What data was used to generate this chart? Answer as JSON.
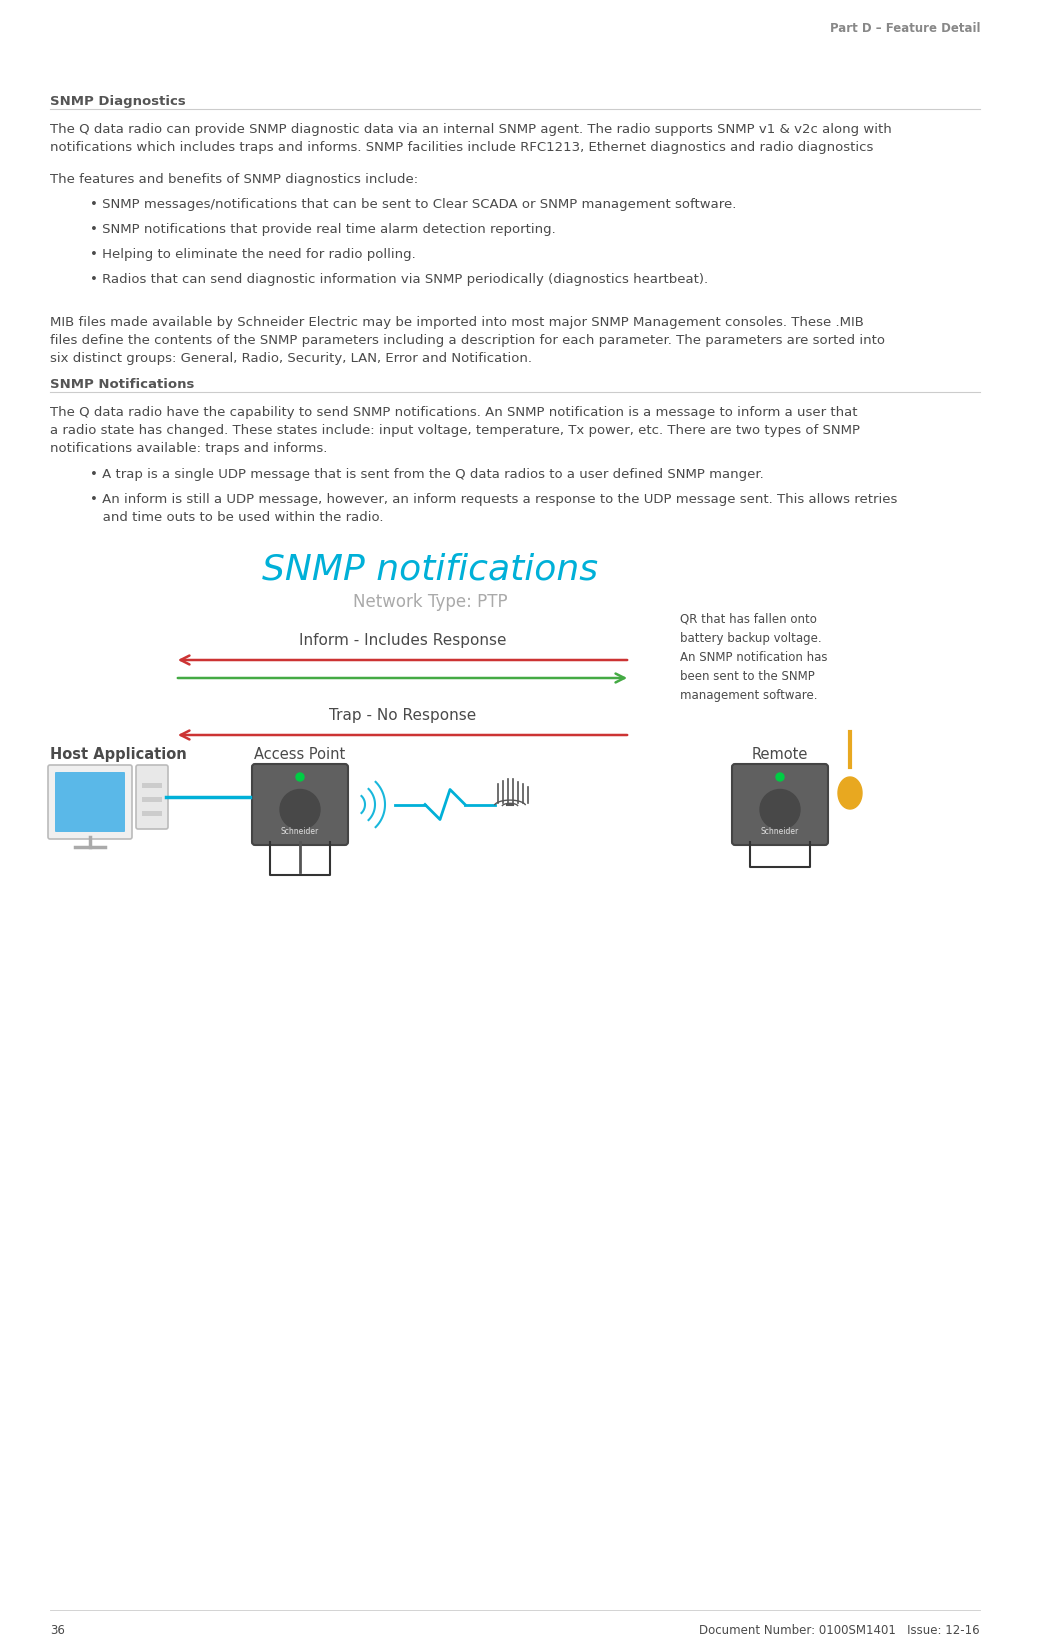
{
  "bg_color": "#ffffff",
  "text_color": "#4a4a4a",
  "header_color": "#888888",
  "section_title_color": "#555555",
  "snmp_title_color": "#00b0d8",
  "network_type_color": "#aaaaaa",
  "line_color": "#cccccc",
  "inform_arrow_color": "#cc3333",
  "response_arrow_color": "#44aa44",
  "trap_arrow_color": "#cc3333",
  "cyan_color": "#00b0d8",
  "orange_color": "#e8a820",
  "page_number": "36",
  "doc_number": "Document Number: 0100SM1401   Issue: 12-16",
  "part_d_header": "Part D – Feature Detail",
  "section1_title": "SNMP Diagnostics",
  "section1_para1_line1": "The Q data radio can provide SNMP diagnostic data via an internal SNMP agent. The radio supports SNMP v1 & v2c along with",
  "section1_para1_line2": "notifications which includes traps and informs. SNMP facilities include RFC1213, Ethernet diagnostics and radio diagnostics",
  "section1_para2": "The features and benefits of SNMP diagnostics include:",
  "bullets": [
    "• SNMP messages/notifications that can be sent to Clear SCADA or SNMP management software.",
    "• SNMP notifications that provide real time alarm detection reporting.",
    "• Helping to eliminate the need for radio polling.",
    "• Radios that can send diagnostic information via SNMP periodically (diagnostics heartbeat)."
  ],
  "section1_para3_line1": "MIB files made available by Schneider Electric may be imported into most major SNMP Management consoles. These .MIB",
  "section1_para3_line2": "files define the contents of the SNMP parameters including a description for each parameter. The parameters are sorted into",
  "section1_para3_line3": "six distinct groups: General, Radio, Security, LAN, Error and Notification.",
  "section2_title": "SNMP Notifications",
  "section2_para1_line1": "The Q data radio have the capability to send SNMP notifications. An SNMP notification is a message to inform a user that",
  "section2_para1_line2": "a radio state has changed. These states include: input voltage, temperature, Tx power, etc. There are two types of SNMP",
  "section2_para1_line3": "notifications available: traps and informs.",
  "bullet2_1": "• A trap is a single UDP message that is sent from the Q data radios to a user defined SNMP manger.",
  "bullet2_2a": "• An inform is still a UDP message, however, an inform requests a response to the UDP message sent. This allows retries",
  "bullet2_2b": "   and time outs to be used within the radio.",
  "diagram_title": "SNMP notifications",
  "network_type": "Network Type: PTP",
  "inform_label": "Inform - Includes Response",
  "trap_label": "Trap - No Response",
  "host_label": "Host Application",
  "access_point_label": "Access Point",
  "remote_label": "Remote",
  "annotation_text": "QR that has fallen onto\nbattery backup voltage.\nAn SNMP notification has\nbeen sent to the SNMP\nmanagement software."
}
